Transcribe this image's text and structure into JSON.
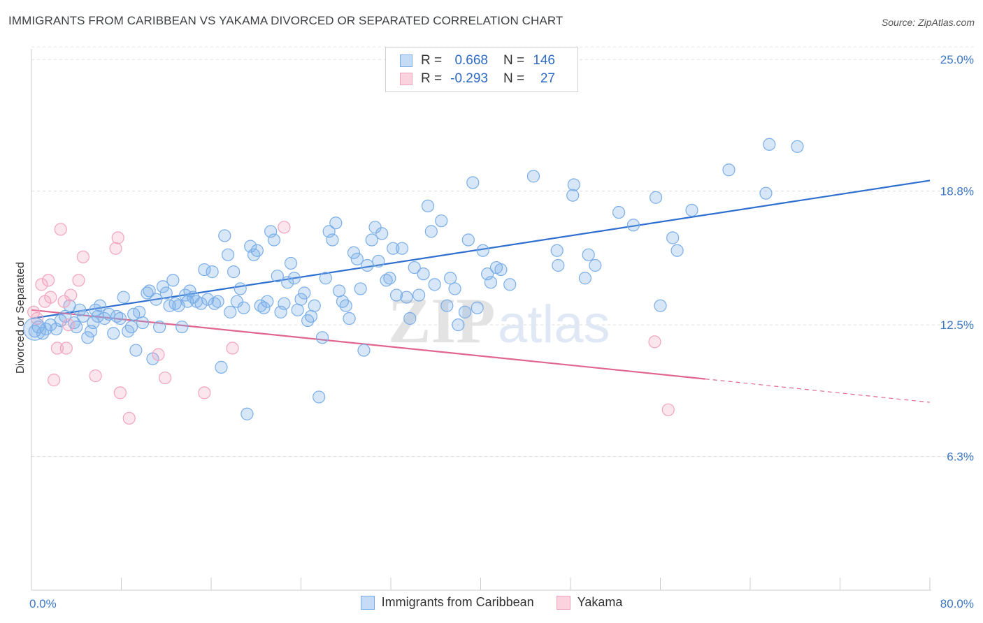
{
  "header": {
    "title": "IMMIGRANTS FROM CARIBBEAN VS YAKAMA DIVORCED OR SEPARATED CORRELATION CHART",
    "source": "Source: ZipAtlas.com"
  },
  "watermark": {
    "zip": "ZIP",
    "atlas": "atlas"
  },
  "legend": {
    "rows": [
      {
        "r_label": "R =",
        "r_value": "0.668",
        "n_label": "N =",
        "n_value": "146",
        "color": "#7aaee8"
      },
      {
        "r_label": "R =",
        "r_value": "-0.293",
        "n_label": "N =",
        "n_value": "27",
        "color": "#f2a4bd"
      }
    ]
  },
  "bottom_legend": {
    "items": [
      {
        "label": "Immigrants from Caribbean",
        "color": "#7aaee8"
      },
      {
        "label": "Yakama",
        "color": "#f2a4bd"
      }
    ]
  },
  "chart_data": {
    "type": "scatter",
    "title": "IMMIGRANTS FROM CARIBBEAN VS YAKAMA DIVORCED OR SEPARATED CORRELATION CHART",
    "xlabel": "",
    "ylabel": "Divorced or Separated",
    "xlim": [
      0,
      80
    ],
    "ylim": [
      0,
      25.5
    ],
    "y_ticks": [
      6.3,
      12.5,
      18.8,
      25.0
    ],
    "y_tick_labels": [
      "6.3%",
      "12.5%",
      "18.8%",
      "25.0%"
    ],
    "x_tick_labels": [
      "0.0%",
      "80.0%"
    ],
    "grid": "horizontal dashed",
    "legend_position": "top-center",
    "series": [
      {
        "name": "Immigrants from Caribbean",
        "color": "#7aaee8",
        "line_color": "#2f6fcf",
        "trend": {
          "x": [
            0,
            80
          ],
          "y": [
            12.8,
            19.3
          ]
        },
        "points": [
          [
            0.3,
            12.2
          ],
          [
            0.6,
            12.4
          ],
          [
            1.0,
            12.1
          ],
          [
            1.3,
            12.3
          ],
          [
            1.7,
            12.5
          ],
          [
            2.2,
            12.3
          ],
          [
            2.6,
            12.7
          ],
          [
            3.0,
            12.9
          ],
          [
            3.4,
            13.4
          ],
          [
            3.8,
            12.6
          ],
          [
            4.0,
            12.4
          ],
          [
            4.3,
            13.2
          ],
          [
            4.6,
            12.9
          ],
          [
            5.0,
            11.9
          ],
          [
            5.3,
            12.2
          ],
          [
            5.5,
            12.6
          ],
          [
            5.7,
            13.2
          ],
          [
            5.9,
            12.9
          ],
          [
            6.1,
            13.4
          ],
          [
            6.5,
            12.8
          ],
          [
            6.9,
            13.0
          ],
          [
            7.3,
            12.1
          ],
          [
            7.6,
            12.9
          ],
          [
            7.9,
            12.8
          ],
          [
            8.2,
            13.8
          ],
          [
            8.6,
            12.2
          ],
          [
            8.9,
            12.4
          ],
          [
            9.1,
            13.0
          ],
          [
            9.3,
            11.3
          ],
          [
            9.6,
            13.1
          ],
          [
            9.9,
            12.6
          ],
          [
            10.3,
            14.0
          ],
          [
            10.5,
            14.1
          ],
          [
            10.8,
            10.9
          ],
          [
            11.1,
            13.7
          ],
          [
            11.4,
            12.4
          ],
          [
            11.7,
            14.3
          ],
          [
            12.0,
            14.0
          ],
          [
            12.3,
            13.4
          ],
          [
            12.6,
            14.6
          ],
          [
            12.8,
            13.5
          ],
          [
            13.1,
            13.4
          ],
          [
            13.4,
            12.4
          ],
          [
            13.7,
            13.9
          ],
          [
            13.9,
            13.6
          ],
          [
            14.1,
            14.1
          ],
          [
            14.4,
            13.8
          ],
          [
            14.7,
            13.6
          ],
          [
            15.1,
            13.5
          ],
          [
            15.4,
            15.1
          ],
          [
            15.7,
            13.7
          ],
          [
            16.1,
            15.0
          ],
          [
            16.3,
            13.5
          ],
          [
            16.6,
            13.6
          ],
          [
            16.9,
            10.5
          ],
          [
            17.2,
            16.7
          ],
          [
            17.5,
            15.8
          ],
          [
            17.7,
            13.1
          ],
          [
            18.0,
            15.0
          ],
          [
            18.3,
            13.6
          ],
          [
            18.6,
            14.2
          ],
          [
            18.9,
            13.3
          ],
          [
            19.2,
            8.3
          ],
          [
            19.5,
            16.2
          ],
          [
            19.8,
            15.8
          ],
          [
            20.1,
            16.0
          ],
          [
            20.4,
            13.4
          ],
          [
            20.7,
            13.3
          ],
          [
            21.0,
            13.6
          ],
          [
            21.3,
            16.9
          ],
          [
            21.6,
            16.5
          ],
          [
            21.9,
            14.8
          ],
          [
            22.2,
            13.1
          ],
          [
            22.5,
            13.5
          ],
          [
            22.8,
            14.5
          ],
          [
            23.1,
            15.4
          ],
          [
            23.4,
            14.7
          ],
          [
            23.7,
            13.2
          ],
          [
            24.0,
            13.7
          ],
          [
            24.3,
            14.0
          ],
          [
            24.6,
            12.7
          ],
          [
            24.9,
            12.9
          ],
          [
            25.2,
            13.4
          ],
          [
            25.6,
            9.1
          ],
          [
            25.9,
            11.9
          ],
          [
            26.2,
            14.7
          ],
          [
            26.5,
            16.9
          ],
          [
            26.8,
            16.5
          ],
          [
            27.1,
            17.3
          ],
          [
            27.4,
            14.1
          ],
          [
            27.7,
            13.6
          ],
          [
            28.0,
            13.4
          ],
          [
            28.3,
            12.8
          ],
          [
            28.7,
            15.9
          ],
          [
            29.0,
            15.6
          ],
          [
            29.3,
            14.2
          ],
          [
            29.6,
            11.3
          ],
          [
            29.9,
            15.3
          ],
          [
            30.3,
            16.5
          ],
          [
            30.6,
            17.1
          ],
          [
            30.9,
            15.5
          ],
          [
            31.2,
            16.8
          ],
          [
            31.6,
            14.6
          ],
          [
            31.9,
            14.7
          ],
          [
            32.2,
            16.1
          ],
          [
            32.5,
            13.9
          ],
          [
            33.0,
            16.1
          ],
          [
            33.4,
            13.8
          ],
          [
            33.7,
            12.8
          ],
          [
            34.1,
            15.2
          ],
          [
            34.5,
            13.9
          ],
          [
            34.9,
            14.9
          ],
          [
            35.3,
            18.1
          ],
          [
            35.6,
            16.9
          ],
          [
            35.9,
            14.4
          ],
          [
            36.5,
            17.4
          ],
          [
            37.0,
            13.4
          ],
          [
            37.3,
            14.7
          ],
          [
            37.7,
            14.2
          ],
          [
            38.0,
            12.5
          ],
          [
            38.6,
            13.1
          ],
          [
            38.9,
            16.5
          ],
          [
            39.3,
            19.2
          ],
          [
            39.7,
            13.3
          ],
          [
            40.2,
            16.0
          ],
          [
            40.6,
            14.9
          ],
          [
            40.9,
            14.5
          ],
          [
            41.4,
            15.2
          ],
          [
            41.8,
            15.1
          ],
          [
            42.6,
            14.4
          ],
          [
            44.7,
            19.5
          ],
          [
            46.8,
            16.0
          ],
          [
            46.9,
            15.3
          ],
          [
            48.2,
            18.6
          ],
          [
            48.3,
            19.1
          ],
          [
            49.3,
            14.7
          ],
          [
            49.6,
            15.8
          ],
          [
            50.2,
            15.3
          ],
          [
            52.3,
            17.8
          ],
          [
            53.6,
            17.2
          ],
          [
            55.6,
            18.5
          ],
          [
            56.0,
            13.4
          ],
          [
            57.1,
            16.6
          ],
          [
            57.5,
            16.0
          ],
          [
            58.8,
            17.9
          ],
          [
            62.1,
            19.8
          ],
          [
            65.4,
            18.7
          ],
          [
            65.7,
            21.0
          ],
          [
            68.2,
            20.9
          ]
        ]
      },
      {
        "name": "Yakama",
        "color": "#f2a4bd",
        "line_color": "#e0668e",
        "trend": {
          "x": [
            0,
            60
          ],
          "y": [
            13.2,
            9.95
          ]
        },
        "trend_dashed": {
          "x": [
            60,
            80
          ],
          "y": [
            9.95,
            8.85
          ]
        },
        "points": [
          [
            0.2,
            13.1
          ],
          [
            0.5,
            12.8
          ],
          [
            0.9,
            14.4
          ],
          [
            1.2,
            13.6
          ],
          [
            1.5,
            14.6
          ],
          [
            1.7,
            13.8
          ],
          [
            2.0,
            9.9
          ],
          [
            2.3,
            11.4
          ],
          [
            2.6,
            17.0
          ],
          [
            2.9,
            13.6
          ],
          [
            3.1,
            11.4
          ],
          [
            3.3,
            12.5
          ],
          [
            3.5,
            13.9
          ],
          [
            4.2,
            14.6
          ],
          [
            4.6,
            15.7
          ],
          [
            5.7,
            10.1
          ],
          [
            7.5,
            16.1
          ],
          [
            7.7,
            16.6
          ],
          [
            7.9,
            9.3
          ],
          [
            8.7,
            8.1
          ],
          [
            11.3,
            11.1
          ],
          [
            11.9,
            10.0
          ],
          [
            15.4,
            9.3
          ],
          [
            17.9,
            11.4
          ],
          [
            22.5,
            17.1
          ],
          [
            55.5,
            11.7
          ],
          [
            56.7,
            8.5
          ]
        ]
      }
    ]
  }
}
